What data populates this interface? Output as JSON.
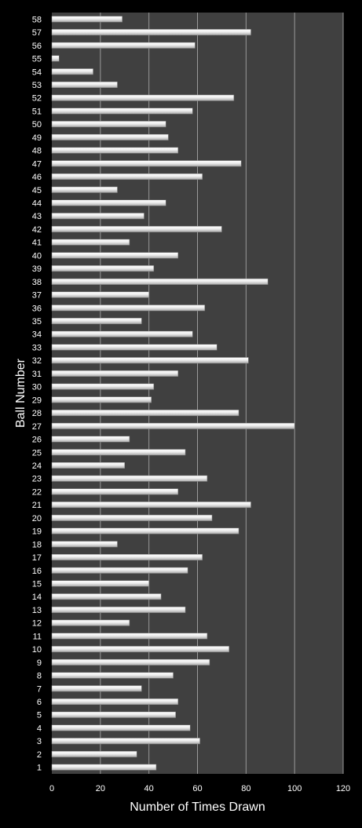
{
  "chart_data": {
    "type": "bar",
    "orientation": "horizontal",
    "title": "",
    "xlabel": "Number of Times Drawn",
    "ylabel": "Ball Number",
    "xlim": [
      0,
      120
    ],
    "x_ticks": [
      0,
      20,
      40,
      60,
      80,
      100,
      120
    ],
    "grid": true,
    "categories": [
      "1",
      "2",
      "3",
      "4",
      "5",
      "6",
      "7",
      "8",
      "9",
      "10",
      "11",
      "12",
      "13",
      "14",
      "15",
      "16",
      "17",
      "18",
      "19",
      "20",
      "21",
      "22",
      "23",
      "24",
      "25",
      "26",
      "27",
      "28",
      "29",
      "30",
      "31",
      "32",
      "33",
      "34",
      "35",
      "36",
      "37",
      "38",
      "39",
      "40",
      "41",
      "42",
      "43",
      "44",
      "45",
      "46",
      "47",
      "48",
      "49",
      "50",
      "51",
      "52",
      "53",
      "54",
      "55",
      "56",
      "57",
      "58"
    ],
    "values": [
      43,
      35,
      61,
      57,
      51,
      52,
      37,
      50,
      65,
      73,
      64,
      32,
      55,
      45,
      40,
      56,
      62,
      27,
      77,
      66,
      82,
      52,
      64,
      30,
      55,
      32,
      100,
      77,
      41,
      42,
      52,
      81,
      68,
      58,
      37,
      63,
      40,
      89,
      42,
      52,
      32,
      70,
      38,
      47,
      27,
      62,
      78,
      52,
      48,
      47,
      58,
      75,
      27,
      17,
      3,
      59,
      82,
      29
    ],
    "colors": {
      "background": "#000000",
      "plot_area": "#404040",
      "gridline": "#9a9a9a",
      "bar_fill": "#e8e8e8",
      "text": "#ffffff"
    }
  }
}
